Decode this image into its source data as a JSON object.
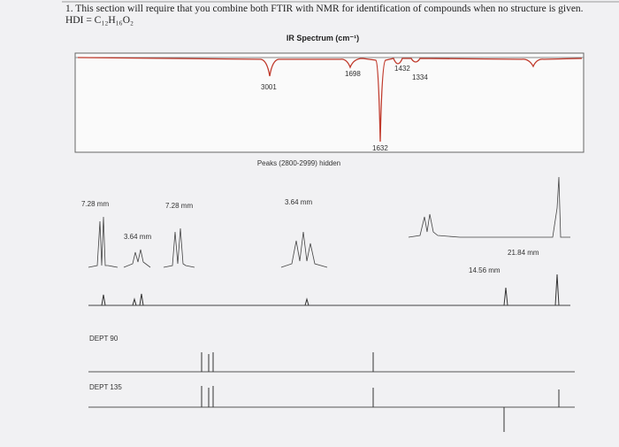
{
  "question": "1. This section will require that you combine both FTIR with NMR for identification of compounds when no structure is given. HDI = C₁₂H₁₆O₂",
  "ir": {
    "title": "IR Spectrum (cm⁻¹)",
    "peaks": [
      "3001",
      "1698",
      "1432",
      "1334",
      "1632"
    ],
    "note": "Peaks (2800-2999) hidden"
  },
  "nmr": {
    "integrals": [
      "7.28 mm",
      "7.28 mm",
      "3.64 mm",
      "3.64 mm",
      "21.84 mm",
      "14.56 mm"
    ]
  },
  "dept": {
    "dept90": "DEPT 90",
    "dept135": "DEPT 135"
  }
}
